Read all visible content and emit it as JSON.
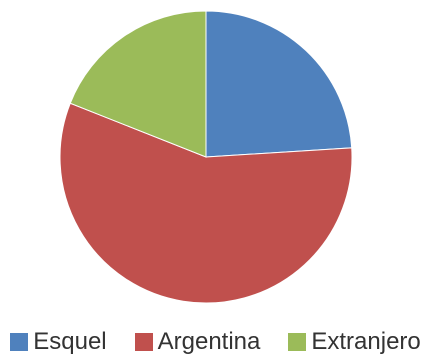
{
  "chart_data": {
    "type": "pie",
    "title": "",
    "categories": [
      "Esquel",
      "Argentina",
      "Extranjero"
    ],
    "values": [
      24,
      57,
      19
    ],
    "colors": [
      "#4f81bd",
      "#c0504d",
      "#9bbb59"
    ],
    "legend_position": "bottom"
  }
}
